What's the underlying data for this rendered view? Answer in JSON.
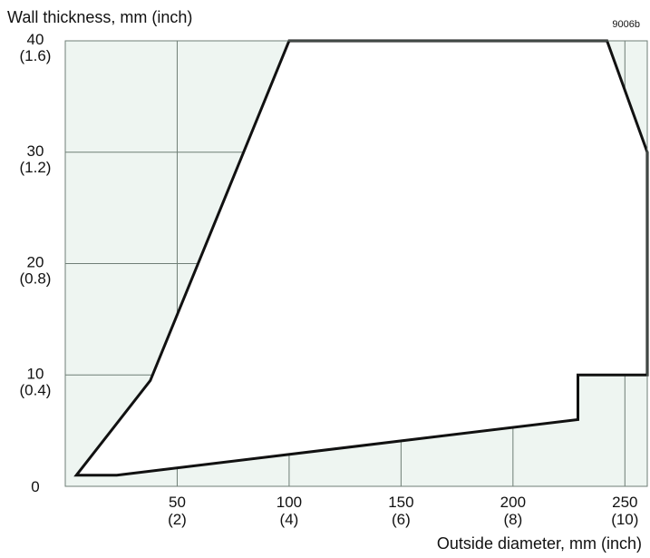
{
  "chart_data": {
    "type": "area",
    "code": "9006b",
    "ylabel": "Wall thickness, mm (inch)",
    "xlabel": "Outside diameter, mm (inch)",
    "xlim": [
      0,
      260
    ],
    "ylim": [
      0,
      40
    ],
    "grid": true,
    "x_ticks": [
      {
        "value": 50,
        "label": "50",
        "sublabel": "(2)"
      },
      {
        "value": 100,
        "label": "100",
        "sublabel": "(4)"
      },
      {
        "value": 150,
        "label": "150",
        "sublabel": "(6)"
      },
      {
        "value": 200,
        "label": "200",
        "sublabel": "(8)"
      },
      {
        "value": 250,
        "label": "250",
        "sublabel": "(10)"
      }
    ],
    "y_ticks": [
      {
        "value": 0,
        "label": "0",
        "sublabel": ""
      },
      {
        "value": 10,
        "label": "10",
        "sublabel": "(0.4)"
      },
      {
        "value": 20,
        "label": "20",
        "sublabel": "(0.8)"
      },
      {
        "value": 30,
        "label": "30",
        "sublabel": "(1.2)"
      },
      {
        "value": 40,
        "label": "40",
        "sublabel": "(1.6)"
      }
    ],
    "region": {
      "name": "",
      "points": [
        [
          5,
          1
        ],
        [
          38,
          9.5
        ],
        [
          100,
          40
        ],
        [
          242,
          40
        ],
        [
          260,
          30
        ],
        [
          260,
          10
        ],
        [
          229,
          10
        ],
        [
          229,
          6
        ],
        [
          23,
          1
        ]
      ]
    },
    "colors": {
      "background": "#ffffff",
      "plot_fill": "#eef5f1",
      "region_fill": "#ffffff",
      "grid": "#6f7e76",
      "boundary": "#111111"
    }
  }
}
